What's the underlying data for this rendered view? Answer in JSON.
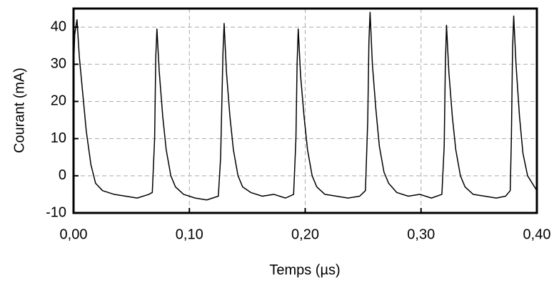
{
  "chart_data": {
    "type": "line",
    "x_label": "Temps (µs)",
    "y_label": "Courant (mA)",
    "color": "#000000",
    "grid": true,
    "xlim": [
      0,
      0.4
    ],
    "ylim": [
      -10,
      45
    ],
    "xticks": [
      {
        "value": 0,
        "label": "0,00"
      },
      {
        "value": 0.1,
        "label": "0,10"
      },
      {
        "value": 0.2,
        "label": "0,20"
      },
      {
        "value": 0.3,
        "label": "0,30"
      },
      {
        "value": 0.4,
        "label": "0,40"
      }
    ],
    "yticks": [
      -10,
      0,
      10,
      20,
      30,
      40
    ],
    "x": [
      0,
      0.001,
      0.003,
      0.005,
      0.008,
      0.011,
      0.015,
      0.019,
      0.025,
      0.035,
      0.045,
      0.055,
      0.065,
      0.068,
      0.07,
      0.071,
      0.072,
      0.074,
      0.077,
      0.08,
      0.084,
      0.088,
      0.095,
      0.105,
      0.115,
      0.125,
      0.127,
      0.129,
      0.13,
      0.132,
      0.135,
      0.138,
      0.142,
      0.146,
      0.153,
      0.163,
      0.173,
      0.183,
      0.19,
      0.192,
      0.193,
      0.194,
      0.196,
      0.199,
      0.202,
      0.206,
      0.21,
      0.217,
      0.227,
      0.237,
      0.247,
      0.252,
      0.254,
      0.255,
      0.256,
      0.258,
      0.261,
      0.264,
      0.268,
      0.272,
      0.279,
      0.289,
      0.299,
      0.309,
      0.318,
      0.32,
      0.321,
      0.322,
      0.324,
      0.327,
      0.33,
      0.334,
      0.338,
      0.345,
      0.355,
      0.365,
      0.373,
      0.377,
      0.378,
      0.379,
      0.38,
      0.382,
      0.385,
      0.388,
      0.392,
      0.396,
      0.4
    ],
    "values": [
      28,
      38,
      42,
      32,
      22,
      12,
      3,
      -2,
      -4,
      -5,
      -5.5,
      -6,
      -5,
      -4.5,
      10,
      32,
      39.5,
      28,
      16,
      7,
      0,
      -3,
      -5,
      -6,
      -6.5,
      -5.5,
      5,
      33,
      41,
      28,
      16,
      7,
      0,
      -3,
      -4.5,
      -5.5,
      -5,
      -6,
      -5,
      10,
      30,
      39.5,
      27,
      16,
      7,
      0,
      -3,
      -5,
      -5.5,
      -6,
      -5.5,
      -4,
      15,
      36,
      44,
      30,
      18,
      8,
      1,
      -2,
      -4.5,
      -5.5,
      -5,
      -6,
      -5,
      8,
      30,
      40.5,
      28,
      16,
      7,
      0,
      -3,
      -5,
      -5.5,
      -6,
      -5.5,
      -4,
      10,
      34,
      43,
      30,
      16,
      6,
      0,
      -2,
      -4
    ]
  }
}
